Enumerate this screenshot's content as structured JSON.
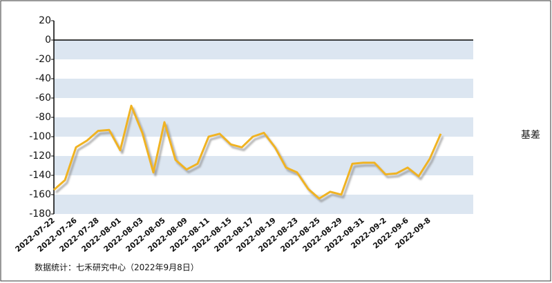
{
  "chart_data": {
    "type": "line",
    "categories": [
      "2022-07-22",
      null,
      "2022-07-26",
      null,
      "2022-07-28",
      null,
      "2022-08-01",
      null,
      "2022-08-03",
      null,
      "2022-08-05",
      null,
      "2022-08-09",
      null,
      "2022-08-11",
      null,
      "2022-08-15",
      null,
      "2022-08-17",
      null,
      "2022-08-19",
      null,
      "2022-08-23",
      null,
      "2022-08-25",
      null,
      "2022-08-29",
      null,
      "2022-08-31",
      null,
      "2022-09-2",
      null,
      "2022-09-6",
      null,
      "2022-09-8",
      null
    ],
    "series": [
      {
        "name": "基差",
        "color": "#f0b323",
        "values": [
          -155,
          -145,
          -111,
          -104,
          -94,
          -93,
          -114,
          -68,
          -96,
          -137,
          -85,
          -124,
          -134,
          -128,
          -100,
          -97,
          -108,
          -111,
          -100,
          -96,
          -111,
          -132,
          -137,
          -154,
          -164,
          -157,
          -160,
          -128,
          -127,
          -127,
          -139,
          -138,
          -132,
          -141,
          -123,
          -97
        ]
      }
    ],
    "ylim": [
      -180,
      20
    ],
    "yticks": [
      20,
      0,
      -20,
      -40,
      -60,
      -80,
      -100,
      -120,
      -140,
      -160,
      -180
    ],
    "grid": true,
    "legend": "right",
    "source": "数据统计：七禾研究中心（2022年9月8日）"
  }
}
